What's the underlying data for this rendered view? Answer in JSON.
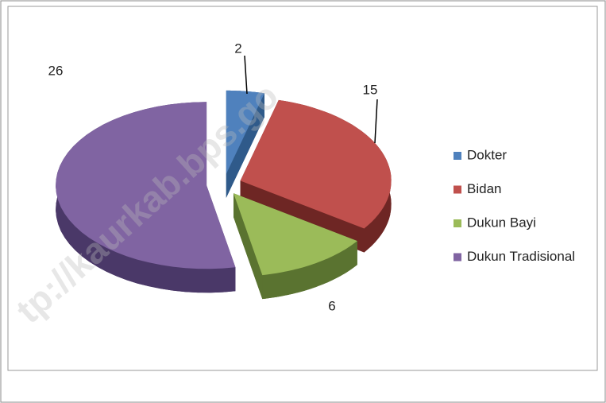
{
  "chart_data": {
    "type": "pie",
    "categories": [
      "Dokter",
      "Bidan",
      "Dukun Bayi",
      "Dukun Tradisional"
    ],
    "values": [
      2,
      15,
      6,
      26
    ],
    "colors": [
      "#4f81bd",
      "#c0504d",
      "#9bbb59",
      "#8064a2"
    ],
    "side_colors": [
      "#2f5a8a",
      "#6e2624",
      "#5a7330",
      "#4a3868"
    ],
    "legend": "right",
    "watermark": "tp://kaurkab.bps.go"
  }
}
